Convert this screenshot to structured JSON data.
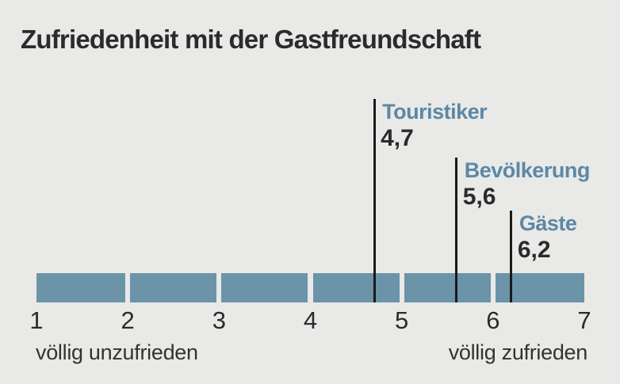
{
  "title": "Zufriedenheit mit der Gastfreundschaft",
  "chart_data": {
    "type": "scale",
    "title": "Zufriedenheit mit der Gastfreundschaft",
    "xlim": [
      1,
      7
    ],
    "ticks": [
      "1",
      "2",
      "3",
      "4",
      "5",
      "6",
      "7"
    ],
    "grid": false,
    "axis_labels": {
      "left": "völlig unzufrieden",
      "right": "völlig zufrieden"
    },
    "series": [
      {
        "name": "Touristiker",
        "value": 4.7,
        "display_value": "4,7"
      },
      {
        "name": "Bevölkerung",
        "value": 5.6,
        "display_value": "5,6"
      },
      {
        "name": "Gäste",
        "value": 6.2,
        "display_value": "6,2"
      }
    ],
    "colors": {
      "background": "#e9e9e7",
      "bar": "#6b94a9",
      "series_label": "#5c88a6",
      "marker_line": "#1a1a1a",
      "text": "#2b2b2b"
    }
  }
}
